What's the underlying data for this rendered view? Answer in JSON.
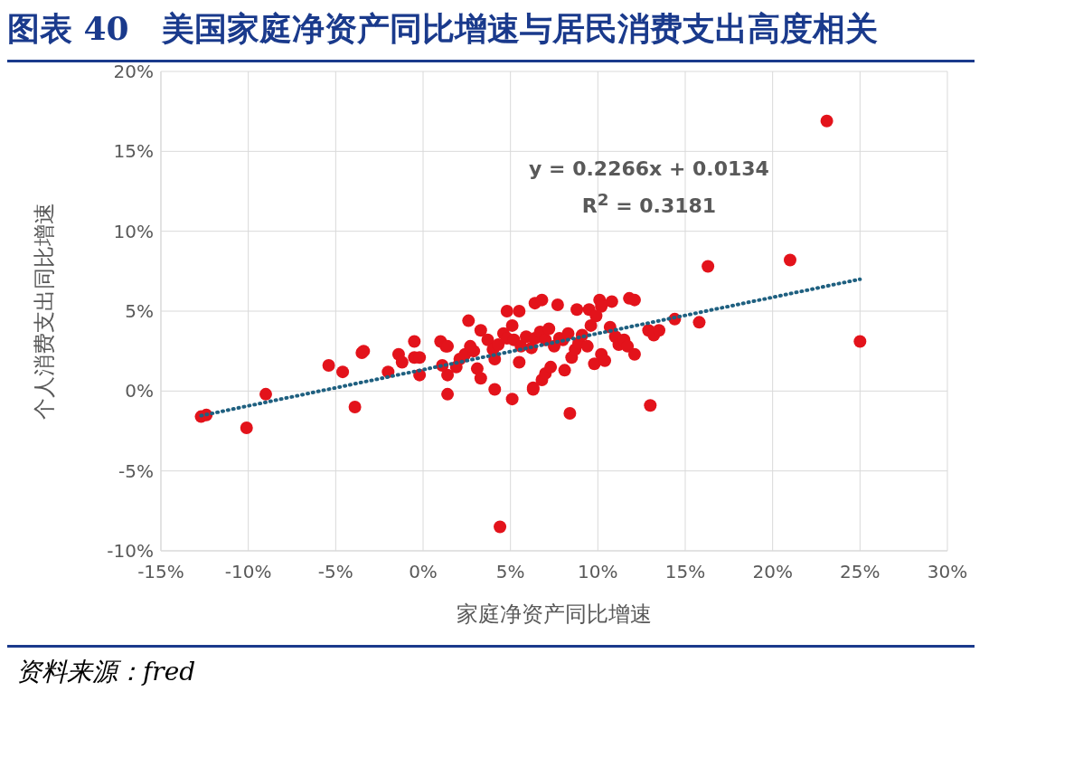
{
  "chart_data": {
    "type": "scatter",
    "title": "图表 40　美国家庭净资产同比增速与居民消费支出高度相关",
    "xlabel": "家庭净资产同比增速",
    "ylabel": "个人消费支出同比增速",
    "annotations": [
      "y = 0.2266x + 0.0134",
      "R$^{2}$ = 0.3181",
      "资料来源：fred"
    ],
    "xlim": [
      -15,
      30
    ],
    "xticks": [
      {
        "value": -15,
        "label": "-15%"
      },
      {
        "value": -10,
        "label": "-10%"
      },
      {
        "value": -5,
        "label": "-5%"
      },
      {
        "value": 0,
        "label": "0%"
      },
      {
        "value": 5,
        "label": "5%"
      },
      {
        "value": 10,
        "label": "10%"
      },
      {
        "value": 15,
        "label": "15%"
      },
      {
        "value": 20,
        "label": "20%"
      },
      {
        "value": 25,
        "label": "25%"
      },
      {
        "value": 30,
        "label": "30%"
      }
    ],
    "ylim": [
      -10,
      20
    ],
    "yticks": [
      {
        "value": -10,
        "label": "-10%"
      },
      {
        "value": -5,
        "label": "-5%"
      },
      {
        "value": 0,
        "label": "0%"
      },
      {
        "value": 5,
        "label": "5%"
      },
      {
        "value": 10,
        "label": "10%"
      },
      {
        "value": 15,
        "label": "15%"
      },
      {
        "value": 20,
        "label": "20%"
      }
    ],
    "grid": true,
    "marker": "circle",
    "series": [
      {
        "color": "#e3131b",
        "x": [
          -12.7,
          -12.4,
          -10.1,
          -9.0,
          -5.4,
          -4.6,
          -3.9,
          -3.5,
          -3.4,
          -2.0,
          -1.4,
          -1.2,
          -0.5,
          -0.5,
          -0.2,
          -0.2,
          1.0,
          1.3,
          1.4,
          1.4,
          1.4,
          2.6,
          3.3,
          4.1,
          4.1,
          4.8,
          4.4,
          5.1,
          6.4,
          6.8,
          7.7,
          6.3,
          6.8,
          7.0,
          7.3,
          8.1,
          8.4,
          8.8,
          9.5,
          10.1,
          10.2,
          10.8,
          11.8,
          12.1,
          13.0,
          12.9,
          13.2,
          13.5,
          14.4,
          15.8,
          16.3,
          21.0,
          23.1,
          25.0,
          1.1,
          1.9,
          2.1,
          2.4,
          2.9,
          2.7,
          3.1,
          3.3,
          3.7,
          4.0,
          4.3,
          4.6,
          4.8,
          5.1,
          5.2,
          5.5,
          5.6,
          5.9,
          6.2,
          6.4,
          6.7,
          7.0,
          7.2,
          7.5,
          7.8,
          8.0,
          8.3,
          8.5,
          8.7,
          8.9,
          9.1,
          9.4,
          9.6,
          9.8,
          9.9,
          10.2,
          10.4,
          10.7,
          11.0,
          11.2,
          11.5,
          11.7,
          12.1,
          5.5,
          6.3
        ],
        "values": [
          -1.6,
          -1.5,
          -2.3,
          -0.2,
          1.6,
          1.2,
          -1.0,
          2.4,
          2.5,
          1.2,
          2.3,
          1.8,
          3.1,
          2.1,
          2.1,
          1.0,
          3.1,
          2.8,
          2.8,
          1.0,
          -0.2,
          4.4,
          3.8,
          2.0,
          0.1,
          5.0,
          -8.5,
          -0.5,
          5.5,
          5.7,
          5.4,
          0.2,
          0.7,
          1.1,
          1.5,
          1.3,
          -1.4,
          5.1,
          5.1,
          5.7,
          5.3,
          5.6,
          5.8,
          5.7,
          -0.9,
          3.8,
          3.5,
          3.8,
          4.5,
          4.3,
          7.8,
          8.2,
          16.9,
          3.1,
          1.6,
          1.5,
          2.0,
          2.3,
          2.5,
          2.8,
          1.4,
          0.8,
          3.2,
          2.6,
          2.9,
          3.6,
          3.3,
          4.1,
          3.2,
          1.8,
          2.8,
          3.4,
          2.7,
          3.3,
          3.7,
          3.2,
          3.9,
          2.8,
          3.3,
          3.2,
          3.6,
          2.1,
          2.6,
          3.0,
          3.5,
          2.8,
          4.1,
          1.7,
          4.7,
          2.3,
          1.9,
          4.0,
          3.4,
          2.9,
          3.2,
          2.8,
          2.3,
          5.0,
          0.1
        ]
      },
      {
        "type": "line",
        "color": "#1f6080",
        "line_style": "dotted",
        "marker": "none",
        "x": [
          -12.7,
          25.0
        ],
        "values": [
          -1.54,
          7.0
        ]
      }
    ]
  }
}
